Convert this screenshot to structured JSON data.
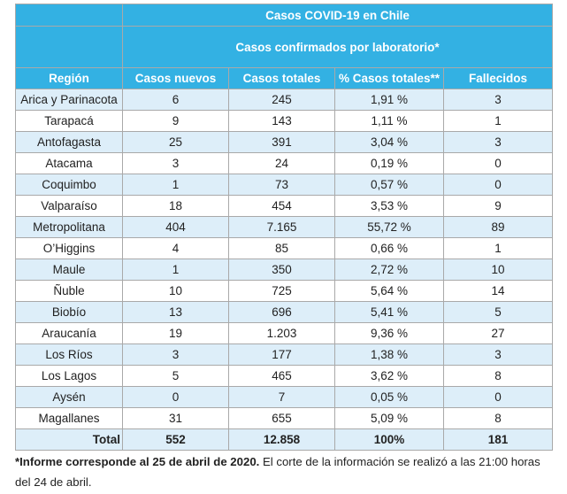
{
  "table": {
    "title": "Casos COVID-19 en Chile",
    "subtitle": "Casos confirmados por laboratorio*",
    "columns": [
      "Región",
      "Casos nuevos",
      "Casos totales",
      "% Casos totales**",
      "Fallecidos"
    ],
    "rows": [
      [
        "Arica y Parinacota",
        "6",
        "245",
        "1,91 %",
        "3"
      ],
      [
        "Tarapacá",
        "9",
        "143",
        "1,11 %",
        "1"
      ],
      [
        "Antofagasta",
        "25",
        "391",
        "3,04 %",
        "3"
      ],
      [
        "Atacama",
        "3",
        "24",
        "0,19 %",
        "0"
      ],
      [
        "Coquimbo",
        "1",
        "73",
        "0,57 %",
        "0"
      ],
      [
        "Valparaíso",
        "18",
        "454",
        "3,53 %",
        "9"
      ],
      [
        "Metropolitana",
        "404",
        "7.165",
        "55,72 %",
        "89"
      ],
      [
        "O’Higgins",
        "4",
        "85",
        "0,66 %",
        "1"
      ],
      [
        "Maule",
        "1",
        "350",
        "2,72 %",
        "10"
      ],
      [
        "Ñuble",
        "10",
        "725",
        "5,64 %",
        "14"
      ],
      [
        "Biobío",
        "13",
        "696",
        "5,41 %",
        "5"
      ],
      [
        "Araucanía",
        "19",
        "1.203",
        "9,36 %",
        "27"
      ],
      [
        "Los Ríos",
        "3",
        "177",
        "1,38 %",
        "3"
      ],
      [
        "Los Lagos",
        "5",
        "465",
        "3,62 %",
        "8"
      ],
      [
        "Aysén",
        "0",
        "7",
        "0,05 %",
        "0"
      ],
      [
        "Magallanes",
        "31",
        "655",
        "5,09 %",
        "8"
      ]
    ],
    "total": [
      "Total",
      "552",
      "12.858",
      "100%",
      "181"
    ]
  },
  "footnote": {
    "bold": "*Informe corresponde al 25 de abril de 2020.",
    "rest": " El corte de la información se realizó a las 21:00 horas del 24 de abril."
  },
  "colors": {
    "header_bg": "#33b1e3",
    "band_bg": "#ddeef9",
    "border": "#a9a9a9"
  }
}
